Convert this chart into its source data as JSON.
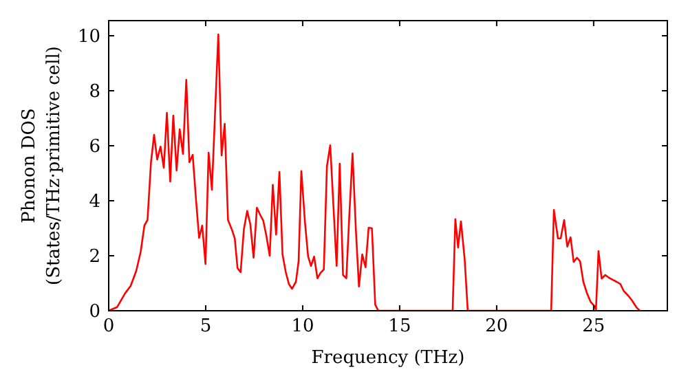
{
  "chart_data": {
    "type": "line",
    "xlabel": "Frequency (THz)",
    "ylabel": "Phonon DOS\n(States/THz·primitive cell)",
    "xlim": [
      0,
      28.8
    ],
    "ylim": [
      0,
      10.55
    ],
    "xticks": [
      0,
      5,
      10,
      15,
      20,
      25
    ],
    "yticks": [
      0,
      2,
      4,
      6,
      8,
      10
    ],
    "grid": false,
    "marker": "none",
    "line_style": "solid",
    "series": [
      {
        "color": "#ff0000",
        "x": [
          0,
          0.43,
          0.85,
          1.13,
          1.42,
          1.65,
          1.84,
          2.0,
          2.18,
          2.34,
          2.5,
          2.67,
          2.84,
          3.0,
          3.17,
          3.33,
          3.5,
          3.66,
          3.83,
          4.0,
          4.16,
          4.33,
          4.5,
          4.66,
          4.82,
          4.99,
          5.15,
          5.32,
          5.65,
          5.82,
          5.98,
          6.15,
          6.34,
          6.5,
          6.64,
          6.8,
          6.97,
          7.14,
          7.3,
          7.47,
          7.64,
          7.8,
          7.97,
          8.13,
          8.3,
          8.46,
          8.63,
          8.8,
          8.96,
          9.13,
          9.29,
          9.45,
          9.65,
          9.79,
          9.93,
          10.12,
          10.28,
          10.43,
          10.59,
          10.76,
          10.92,
          11.09,
          11.25,
          11.42,
          11.58,
          11.75,
          11.91,
          12.08,
          12.25,
          12.41,
          12.57,
          12.74,
          12.9,
          13.07,
          13.24,
          13.4,
          13.57,
          13.74,
          13.9,
          17.73,
          17.87,
          18.01,
          18.16,
          18.35,
          18.51,
          22.81,
          22.95,
          23.16,
          23.3,
          23.48,
          23.64,
          23.81,
          23.97,
          24.14,
          24.3,
          24.47,
          24.66,
          24.84,
          25.04,
          25.12,
          25.25,
          25.41,
          25.6,
          25.79,
          25.98,
          26.19,
          26.38,
          26.55,
          26.78,
          26.97,
          27.2,
          27.38
        ],
        "values": [
          0,
          0.13,
          0.64,
          0.9,
          1.45,
          2.15,
          3.1,
          3.3,
          5.4,
          6.4,
          5.5,
          5.97,
          5.2,
          7.2,
          4.7,
          7.1,
          5.1,
          6.6,
          5.7,
          8.4,
          5.4,
          5.67,
          4.05,
          2.65,
          3.1,
          1.7,
          5.75,
          4.4,
          10.05,
          5.65,
          6.8,
          3.3,
          2.97,
          2.63,
          1.55,
          1.4,
          2.97,
          3.63,
          3.15,
          1.93,
          3.75,
          3.5,
          3.27,
          2.72,
          2.0,
          4.58,
          2.77,
          5.05,
          2.05,
          1.4,
          0.97,
          0.8,
          1.05,
          1.8,
          5.08,
          3.2,
          1.97,
          1.63,
          1.97,
          1.18,
          1.38,
          1.5,
          5.25,
          6.02,
          3.88,
          1.63,
          5.35,
          1.3,
          1.18,
          3.55,
          5.72,
          2.97,
          0.88,
          2.05,
          1.58,
          3.02,
          3.0,
          0.22,
          0,
          0,
          3.33,
          2.3,
          3.25,
          1.88,
          0,
          0,
          3.67,
          2.63,
          2.63,
          3.3,
          2.33,
          2.67,
          1.77,
          1.93,
          1.8,
          1.05,
          0.63,
          0.33,
          0.17,
          0.05,
          2.17,
          1.17,
          1.3,
          1.2,
          1.13,
          1.05,
          0.97,
          0.72,
          0.55,
          0.38,
          0.13,
          0
        ]
      }
    ]
  }
}
